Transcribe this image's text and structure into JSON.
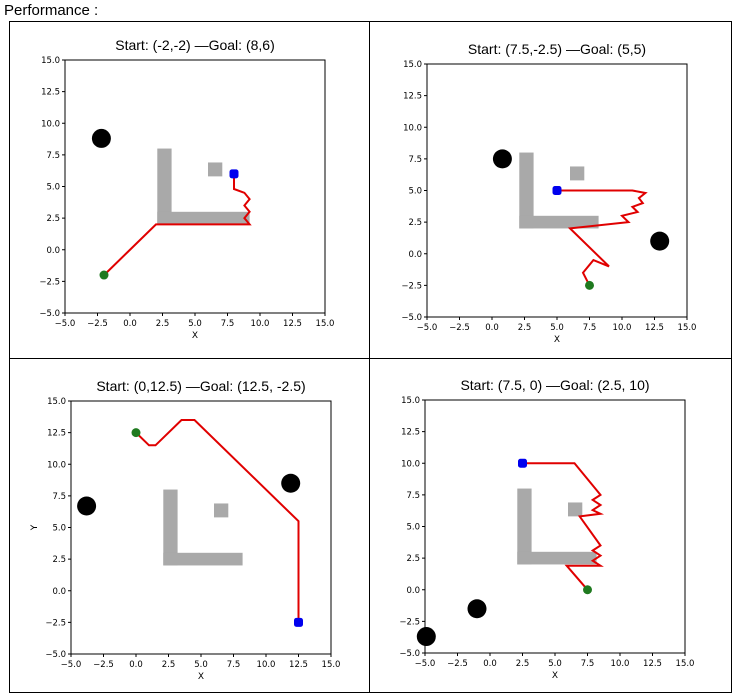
{
  "caption": "Performance :",
  "chart_data": [
    {
      "type": "line",
      "title": "Start: (-2,-2) —Goal: (8,6)",
      "xlabel": "X",
      "ylabel": "",
      "xlim": [
        -5,
        15
      ],
      "ylim": [
        -5,
        15
      ],
      "xticks": [
        "−5.0",
        "−2.5",
        "0.0",
        "2.5",
        "5.0",
        "7.5",
        "10.0",
        "12.5",
        "15.0"
      ],
      "yticks": [
        "−5.0",
        "−2.5",
        "0.0",
        "2.5",
        "5.0",
        "7.5",
        "10.0",
        "12.5",
        "15.0"
      ],
      "start": [
        -2,
        -2
      ],
      "goal": [
        8,
        6
      ],
      "obstacles_circles": [
        [
          -2.2,
          8.8
        ]
      ],
      "walls": [
        [
          2.1,
          2.0,
          3.2,
          8.0
        ],
        [
          2.1,
          2.0,
          9.2,
          3.0
        ],
        [
          6.0,
          5.8,
          7.1,
          6.9
        ]
      ],
      "path": [
        [
          -2,
          -2
        ],
        [
          2.0,
          2.0
        ],
        [
          9.2,
          2.0
        ],
        [
          8.8,
          2.5
        ],
        [
          9.2,
          3.0
        ],
        [
          8.8,
          3.5
        ],
        [
          9.2,
          4.0
        ],
        [
          8.8,
          4.5
        ],
        [
          8.0,
          4.8
        ],
        [
          8.0,
          6.0
        ]
      ]
    },
    {
      "type": "line",
      "title": "Start: (7.5,-2.5) —Goal: (5,5)",
      "xlabel": "X",
      "ylabel": "",
      "xlim": [
        -5,
        15
      ],
      "ylim": [
        -5,
        15
      ],
      "xticks": [
        "−5.0",
        "−2.5",
        "0.0",
        "2.5",
        "5.0",
        "7.5",
        "10.0",
        "12.5",
        "15.0"
      ],
      "yticks": [
        "−5.0",
        "−2.5",
        "0.0",
        "2.5",
        "5.0",
        "7.5",
        "10.0",
        "12.5",
        "15.0"
      ],
      "start": [
        7.5,
        -2.5
      ],
      "goal": [
        5,
        5
      ],
      "obstacles_circles": [
        [
          0.8,
          7.5
        ],
        [
          12.9,
          1.0
        ]
      ],
      "walls": [
        [
          2.1,
          2.0,
          3.2,
          8.0
        ],
        [
          2.1,
          2.0,
          8.2,
          3.0
        ],
        [
          6.0,
          5.8,
          7.1,
          6.9
        ]
      ],
      "path": [
        [
          7.5,
          -2.5
        ],
        [
          7.0,
          -1.5
        ],
        [
          7.8,
          -0.5
        ],
        [
          9.0,
          -1.0
        ],
        [
          6.0,
          2.0
        ],
        [
          10.5,
          2.5
        ],
        [
          10.0,
          3.0
        ],
        [
          11.2,
          3.3
        ],
        [
          10.8,
          3.7
        ],
        [
          11.6,
          4.0
        ],
        [
          11.3,
          4.4
        ],
        [
          11.8,
          4.8
        ],
        [
          10.8,
          5.0
        ],
        [
          5,
          5
        ]
      ]
    },
    {
      "type": "line",
      "title": "Start: (0,12.5) —Goal: (12.5, -2.5)",
      "xlabel": "X",
      "ylabel": "Y",
      "xlim": [
        -5,
        15
      ],
      "ylim": [
        -5,
        15
      ],
      "xticks": [
        "−5.0",
        "−2.5",
        "0.0",
        "2.5",
        "5.0",
        "7.5",
        "10.0",
        "12.5",
        "15.0"
      ],
      "yticks": [
        "−5.0",
        "−2.5",
        "0.0",
        "2.5",
        "5.0",
        "7.5",
        "10.0",
        "12.5",
        "15.0"
      ],
      "start": [
        0,
        12.5
      ],
      "goal": [
        12.5,
        -2.5
      ],
      "obstacles_circles": [
        [
          -3.8,
          6.7
        ],
        [
          11.9,
          8.5
        ]
      ],
      "walls": [
        [
          2.1,
          2.0,
          3.2,
          8.0
        ],
        [
          2.1,
          2.0,
          8.2,
          3.0
        ],
        [
          6.0,
          5.8,
          7.1,
          6.9
        ]
      ],
      "path": [
        [
          0,
          12.5
        ],
        [
          1.0,
          11.5
        ],
        [
          1.5,
          11.5
        ],
        [
          3.5,
          13.5
        ],
        [
          4.5,
          13.5
        ],
        [
          12.5,
          5.5
        ],
        [
          12.5,
          -2.5
        ]
      ]
    },
    {
      "type": "line",
      "title": "Start: (7.5, 0) —Goal: (2.5, 10)",
      "xlabel": "X",
      "ylabel": "",
      "xlim": [
        -5,
        15
      ],
      "ylim": [
        -5,
        15
      ],
      "xticks": [
        "−5.0",
        "−2.5",
        "0.0",
        "2.5",
        "5.0",
        "7.5",
        "10.0",
        "12.5",
        "15.0"
      ],
      "yticks": [
        "−5.0",
        "−2.5",
        "0.0",
        "2.5",
        "5.0",
        "7.5",
        "10.0",
        "12.5",
        "15.0"
      ],
      "start": [
        7.5,
        0
      ],
      "goal": [
        2.5,
        10
      ],
      "obstacles_circles": [
        [
          -1.0,
          -1.5
        ],
        [
          -4.9,
          -3.7
        ]
      ],
      "walls": [
        [
          2.1,
          2.0,
          3.2,
          8.0
        ],
        [
          2.1,
          2.0,
          8.2,
          3.0
        ],
        [
          6.0,
          5.8,
          7.1,
          6.9
        ]
      ],
      "path": [
        [
          7.5,
          0
        ],
        [
          5.9,
          1.9
        ],
        [
          8.5,
          1.9
        ],
        [
          7.9,
          2.3
        ],
        [
          8.5,
          2.7
        ],
        [
          7.9,
          3.1
        ],
        [
          8.5,
          3.5
        ],
        [
          6.9,
          5.8
        ],
        [
          8.5,
          6.0
        ],
        [
          7.9,
          6.3
        ],
        [
          8.5,
          6.7
        ],
        [
          7.9,
          7.1
        ],
        [
          8.5,
          7.5
        ],
        [
          6.5,
          10.0
        ],
        [
          2.5,
          10.0
        ]
      ]
    }
  ]
}
